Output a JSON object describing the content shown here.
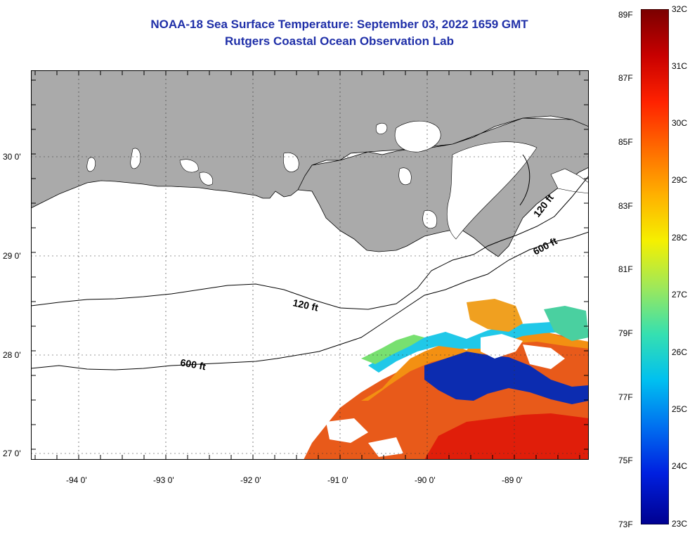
{
  "title": {
    "line1": "NOAA-18 Sea Surface Temperature:  September 03, 2022 1659 GMT",
    "line2": "Rutgers Coastal Ocean Observation Lab"
  },
  "map": {
    "x_ticks": [
      "-94 0'",
      "-93 0'",
      "-92 0'",
      "-91 0'",
      "-90 0'",
      "-89 0'"
    ],
    "y_ticks": [
      "30 0'",
      "29 0'",
      "28 0'",
      "27 0'"
    ],
    "contours": {
      "shelf_120_a": "120 ft",
      "shelf_120_b": "120 ft",
      "shelf_600_a": "600 ft",
      "shelf_600_b": "600 ft"
    },
    "colors": {
      "land": "#aaaaaa",
      "water": "#ffffff",
      "warm": "#e8501a",
      "cold": "#0a2ab4"
    }
  },
  "colorbar": {
    "fahrenheit": [
      "89F",
      "87F",
      "85F",
      "83F",
      "81F",
      "79F",
      "77F",
      "75F",
      "73F"
    ],
    "celsius": [
      "32C",
      "31C",
      "30C",
      "29C",
      "28C",
      "27C",
      "26C",
      "25C",
      "24C",
      "23C"
    ],
    "colormap": [
      "#7a0000",
      "#c80000",
      "#ff2200",
      "#ff6a00",
      "#ffb000",
      "#f5f000",
      "#9ee85a",
      "#36e0b0",
      "#00c0f0",
      "#0070f0",
      "#0020e0",
      "#000090"
    ]
  }
}
